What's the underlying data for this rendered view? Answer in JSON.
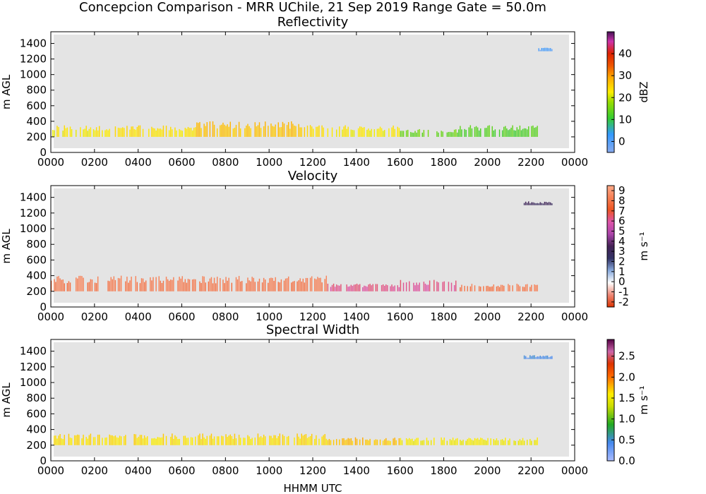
{
  "figure": {
    "suptitle": "Concepcion Comparison - MRR UChile, 21 Sep 2019 Range Gate = 50.0m",
    "xlabel": "HHMM UTC"
  },
  "chart_data": [
    {
      "type": "heatmap",
      "title": "Reflectivity",
      "ylabel": "m AGL",
      "xlim": [
        0,
        1440
      ],
      "ylim": [
        0,
        1550
      ],
      "x_ticks": [
        "0000",
        "0200",
        "0400",
        "0600",
        "0800",
        "1000",
        "1200",
        "1400",
        "1600",
        "1800",
        "2000",
        "2200",
        "0000"
      ],
      "y_ticks": [
        0,
        200,
        400,
        600,
        800,
        1000,
        1200,
        1400
      ],
      "colorbar": {
        "label": "dBZ",
        "range": [
          -5,
          50
        ],
        "ticks": [
          "0",
          "10",
          "20",
          "30",
          "40"
        ],
        "tick_values": [
          0,
          10,
          20,
          30,
          40
        ]
      },
      "segments": [
        {
          "t_start": 0,
          "t_end": 120,
          "h_low": 200,
          "h_high": 350,
          "value": 22
        },
        {
          "t_start": 120,
          "t_end": 400,
          "h_low": 200,
          "h_high": 350,
          "value": 23
        },
        {
          "t_start": 400,
          "t_end": 700,
          "h_low": 200,
          "h_high": 400,
          "value": 26
        },
        {
          "t_start": 700,
          "t_end": 760,
          "h_low": 200,
          "h_high": 400,
          "value": 24
        },
        {
          "t_start": 760,
          "t_end": 960,
          "h_low": 200,
          "h_high": 350,
          "value": 22
        },
        {
          "t_start": 960,
          "t_end": 1120,
          "h_low": 200,
          "h_high": 300,
          "value": 14
        },
        {
          "t_start": 1120,
          "t_end": 1340,
          "h_low": 200,
          "h_high": 350,
          "value": 12
        },
        {
          "t_start": 1340,
          "t_end": 1380,
          "h_low": 1300,
          "h_high": 1350,
          "value": 0
        }
      ]
    },
    {
      "type": "heatmap",
      "title": "Velocity",
      "ylabel": "m AGL",
      "xlim": [
        0,
        1440
      ],
      "ylim": [
        0,
        1550
      ],
      "x_ticks": [
        "0000",
        "0200",
        "0400",
        "0600",
        "0800",
        "1000",
        "1200",
        "1400",
        "1600",
        "1800",
        "2000",
        "2200",
        "0000"
      ],
      "y_ticks": [
        0,
        200,
        400,
        600,
        800,
        1000,
        1200,
        1400
      ],
      "colorbar": {
        "label": "m s⁻¹",
        "range": [
          -2.5,
          9.5
        ],
        "ticks": [
          "-2",
          "-1",
          "0",
          "1",
          "2",
          "3",
          "4",
          "5",
          "6",
          "7",
          "8",
          "9"
        ],
        "tick_values": [
          -2,
          -1,
          0,
          1,
          2,
          3,
          4,
          5,
          6,
          7,
          8,
          9
        ]
      },
      "segments": [
        {
          "t_start": 0,
          "t_end": 760,
          "h_low": 200,
          "h_high": 400,
          "value": 8
        },
        {
          "t_start": 760,
          "t_end": 960,
          "h_low": 200,
          "h_high": 300,
          "value": 6
        },
        {
          "t_start": 960,
          "t_end": 1120,
          "h_low": 200,
          "h_high": 350,
          "value": 6
        },
        {
          "t_start": 1120,
          "t_end": 1340,
          "h_low": 200,
          "h_high": 300,
          "value": 8
        },
        {
          "t_start": 1300,
          "t_end": 1380,
          "h_low": 1300,
          "h_high": 1350,
          "value": 3
        }
      ]
    },
    {
      "type": "heatmap",
      "title": "Spectral Width",
      "ylabel": "m AGL",
      "xlim": [
        0,
        1440
      ],
      "ylim": [
        0,
        1550
      ],
      "x_ticks": [
        "0000",
        "0200",
        "0400",
        "0600",
        "0800",
        "1000",
        "1200",
        "1400",
        "1600",
        "1800",
        "2000",
        "2200",
        "0000"
      ],
      "y_ticks": [
        0,
        200,
        400,
        600,
        800,
        1000,
        1200,
        1400
      ],
      "colorbar": {
        "label": "m s⁻¹",
        "range": [
          0,
          2.9
        ],
        "ticks": [
          "0.0",
          "0.5",
          "1.0",
          "1.5",
          "2.0",
          "2.5"
        ],
        "tick_values": [
          0,
          0.5,
          1,
          1.5,
          2,
          2.5
        ]
      },
      "segments": [
        {
          "t_start": 0,
          "t_end": 760,
          "h_low": 200,
          "h_high": 350,
          "value": 1.6
        },
        {
          "t_start": 760,
          "t_end": 960,
          "h_low": 200,
          "h_high": 300,
          "value": 1.7
        },
        {
          "t_start": 960,
          "t_end": 1340,
          "h_low": 200,
          "h_high": 300,
          "value": 1.5
        },
        {
          "t_start": 1300,
          "t_end": 1380,
          "h_low": 1300,
          "h_high": 1350,
          "value": 0.4
        }
      ]
    }
  ]
}
